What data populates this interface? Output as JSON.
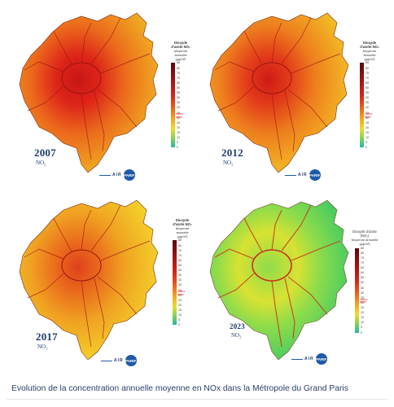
{
  "caption": "Evolution de la concentration annuelle moyenne en NOx dans la Métropole du Grand Paris",
  "brand": {
    "air": "AIR",
    "paris": "PARIF"
  },
  "panels": [
    {
      "year": "2007",
      "pollutant": "NO₂",
      "legend": {
        "title": "Dioxyde\nd'azote NO₂",
        "subtitle": "Moyenne\nannuelle\n(µg/m³)",
        "ticks": [
          "85",
          "80",
          "75",
          "70",
          "65",
          "60",
          "55",
          "50",
          "45",
          "40",
          "35",
          "30",
          "25",
          "20",
          "15",
          "10",
          "5",
          "0"
        ],
        "limit": "Valeur\nlimite"
      },
      "palette": {
        "outer": "#f0b223",
        "mid": "#ec6a1c",
        "inner": "#dd2419",
        "core": "#c91616"
      }
    },
    {
      "year": "2012",
      "pollutant": "NO₂",
      "legend": {
        "title": "Dioxyde\nd'azote NO₂",
        "subtitle": "Moyenne\nannuelle\n(µg/m³)",
        "ticks": [
          "85",
          "80",
          "75",
          "70",
          "65",
          "60",
          "55",
          "50",
          "45",
          "40",
          "35",
          "30",
          "25",
          "20",
          "15",
          "10",
          "5",
          "0"
        ],
        "limit": "Valeur\nlimite"
      },
      "palette": {
        "outer": "#f2c126",
        "mid": "#ee7f1e",
        "inner": "#e23b1a",
        "core": "#cf1a16"
      }
    },
    {
      "year": "2017",
      "pollutant": "NO₂",
      "legend": {
        "title": "Dioxyde\nd'azote NO₂",
        "subtitle": "Moyenne\nannuelle\n(µg/m³)",
        "ticks": [
          "85",
          "80",
          "75",
          "70",
          "65",
          "60",
          "55",
          "50",
          "45",
          "40",
          "35",
          "30",
          "25",
          "20",
          "15",
          "10",
          "5",
          "0"
        ],
        "limit": "Valeur\nlimite"
      },
      "palette": {
        "outer": "#f4d52b",
        "mid": "#f0a222",
        "inner": "#ea6a1d",
        "core": "#e0411b"
      }
    },
    {
      "year": "2023",
      "pollutant": "NO₂",
      "legend": {
        "title": "Dioxyde d'azote (NO₂)",
        "subtitle": "Moyenne annuelle\n(µg/m³)",
        "ticks": [
          "85",
          "80",
          "75",
          "70",
          "65",
          "60",
          "55",
          "50",
          "45",
          "40",
          "35",
          "30",
          "25",
          "20",
          "15",
          "10",
          "5",
          "0"
        ],
        "limit": "Valeur\nlimite"
      },
      "palette": {
        "outer": "#3fcb63",
        "mid": "#8fdc4a",
        "inner": "#d8e232",
        "core": "#c8321a"
      }
    }
  ]
}
